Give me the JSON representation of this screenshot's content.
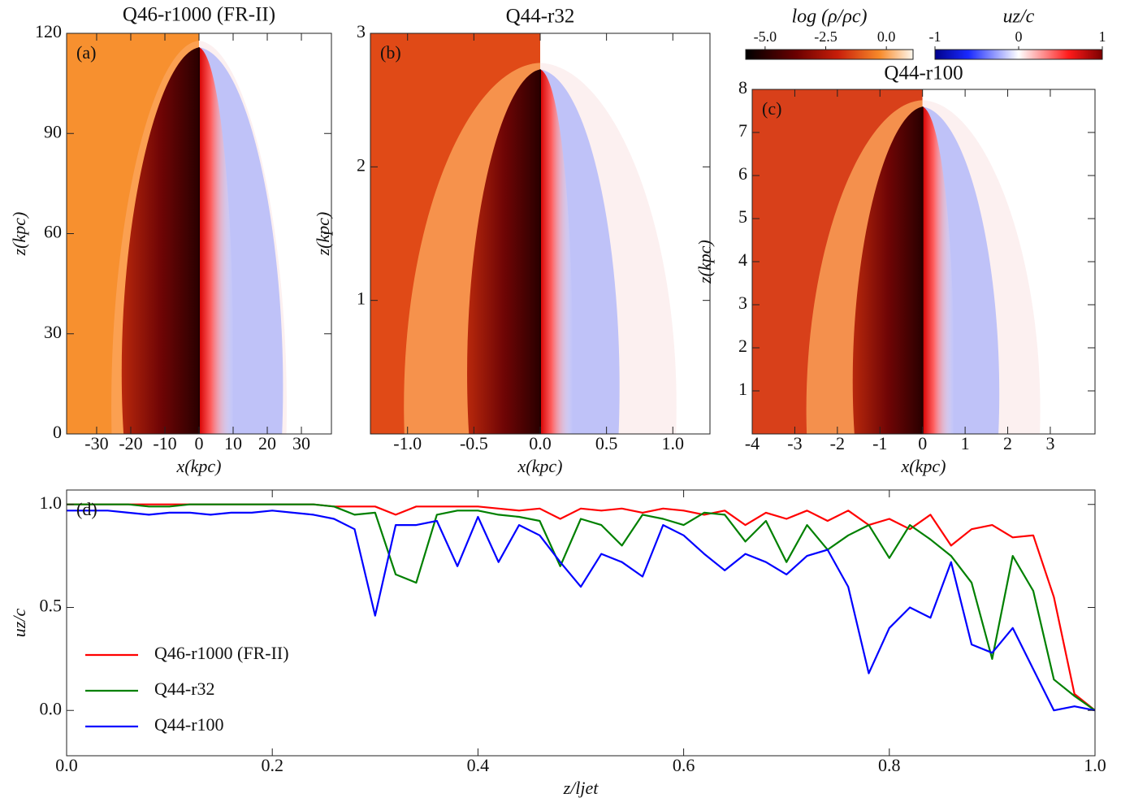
{
  "chart_data": [
    {
      "type": "image",
      "title": "Q46-r1000 (FR-II)",
      "panel_label": "(a)",
      "xlabel": "x(kpc)",
      "ylabel": "z(kpc)",
      "xlim": [
        -38.8,
        38.8
      ],
      "ylim": [
        0,
        120
      ],
      "xticks": [
        -30,
        -20,
        -10,
        0,
        10,
        20,
        30
      ],
      "yticks": [
        0,
        30,
        60,
        90,
        120
      ]
    },
    {
      "type": "image",
      "title": "Q44-r32",
      "panel_label": "(b)",
      "xlabel": "x(kpc)",
      "ylabel": "z(kpc)",
      "xlim": [
        -1.28,
        1.28
      ],
      "ylim": [
        0,
        3
      ],
      "xticks": [
        {
          "value": -1,
          "label": "-1.0"
        },
        {
          "value": -0.5,
          "label": "-0.5"
        },
        {
          "value": 0,
          "label": "0.0"
        },
        {
          "value": 0.5,
          "label": "0.5"
        },
        {
          "value": 1,
          "label": "1.0"
        }
      ],
      "yticks": [
        1,
        2,
        3
      ]
    },
    {
      "type": "image",
      "title": "Q44-r100",
      "panel_label": "(c)",
      "xlabel": "x(kpc)",
      "ylabel": "z(kpc)",
      "xlim": [
        -4,
        4.05
      ],
      "ylim": [
        0,
        8
      ],
      "xticks": [
        -4,
        -3,
        -2,
        -1,
        0,
        1,
        2,
        3
      ],
      "yticks": [
        1,
        2,
        3,
        4,
        5,
        6,
        7,
        8
      ]
    },
    {
      "type": "line",
      "panel_label": "(d)",
      "xlabel": "z/ljet",
      "ylabel": "uz/c",
      "xlim": [
        0,
        1
      ],
      "ylim": [
        -0.22,
        1.07
      ],
      "xticks": [
        {
          "value": 0,
          "label": "0.0"
        },
        {
          "value": 0.2,
          "label": "0.2"
        },
        {
          "value": 0.4,
          "label": "0.4"
        },
        {
          "value": 0.6,
          "label": "0.6"
        },
        {
          "value": 0.8,
          "label": "0.8"
        },
        {
          "value": 1,
          "label": "1.0"
        }
      ],
      "yticks": [
        {
          "value": 0,
          "label": "0.0"
        },
        {
          "value": 0.5,
          "label": "0.5"
        },
        {
          "value": 1,
          "label": "1.0"
        }
      ],
      "x": [
        0,
        0.02,
        0.04,
        0.06,
        0.08,
        0.1,
        0.12,
        0.14,
        0.16,
        0.18,
        0.2,
        0.22,
        0.24,
        0.26,
        0.28,
        0.3,
        0.32,
        0.34,
        0.36,
        0.38,
        0.4,
        0.42,
        0.44,
        0.46,
        0.48,
        0.5,
        0.52,
        0.54,
        0.56,
        0.58,
        0.6,
        0.62,
        0.64,
        0.66,
        0.68,
        0.7,
        0.72,
        0.74,
        0.76,
        0.78,
        0.8,
        0.82,
        0.84,
        0.86,
        0.88,
        0.9,
        0.92,
        0.94,
        0.96,
        0.98,
        1
      ],
      "series": [
        {
          "name": "Q46-r1000 (FR-II)",
          "color": "#ff0000",
          "values": [
            1,
            1,
            1,
            1,
            1,
            1,
            1,
            1,
            1,
            1,
            1,
            1,
            1,
            0.99,
            0.99,
            0.99,
            0.95,
            0.99,
            0.99,
            0.99,
            0.99,
            0.98,
            0.97,
            0.98,
            0.93,
            0.98,
            0.97,
            0.98,
            0.96,
            0.98,
            0.97,
            0.95,
            0.97,
            0.9,
            0.96,
            0.93,
            0.97,
            0.92,
            0.97,
            0.9,
            0.93,
            0.88,
            0.95,
            0.8,
            0.88,
            0.9,
            0.84,
            0.85,
            0.55,
            0.08,
            0
          ]
        },
        {
          "name": "Q44-r32",
          "color": "#008000",
          "values": [
            1,
            1,
            1,
            1,
            0.99,
            0.99,
            1,
            1,
            1,
            1,
            1,
            1,
            1,
            0.99,
            0.95,
            0.96,
            0.66,
            0.62,
            0.95,
            0.97,
            0.97,
            0.95,
            0.94,
            0.92,
            0.7,
            0.93,
            0.9,
            0.8,
            0.95,
            0.93,
            0.9,
            0.96,
            0.95,
            0.82,
            0.92,
            0.72,
            0.9,
            0.78,
            0.85,
            0.9,
            0.74,
            0.9,
            0.83,
            0.75,
            0.62,
            0.25,
            0.75,
            0.58,
            0.15,
            0.07,
            0
          ]
        },
        {
          "name": "Q44-r100",
          "color": "#0000ff",
          "values": [
            0.97,
            0.97,
            0.97,
            0.96,
            0.95,
            0.96,
            0.96,
            0.95,
            0.96,
            0.96,
            0.97,
            0.96,
            0.95,
            0.93,
            0.88,
            0.46,
            0.9,
            0.9,
            0.92,
            0.7,
            0.94,
            0.72,
            0.9,
            0.85,
            0.72,
            0.6,
            0.76,
            0.72,
            0.65,
            0.9,
            0.85,
            0.76,
            0.68,
            0.76,
            0.72,
            0.66,
            0.75,
            0.78,
            0.6,
            0.18,
            0.4,
            0.5,
            0.45,
            0.72,
            0.32,
            0.28,
            0.4,
            0.2,
            0,
            0.02,
            0
          ]
        }
      ]
    },
    {
      "type": "colorbar",
      "label": "log (ρ/ρc)",
      "clim": [
        -5.8,
        1.1
      ],
      "ticks": [
        {
          "value": -5,
          "label": "-5.0"
        },
        {
          "value": -2.5,
          "label": "-2.5"
        },
        {
          "value": 0,
          "label": "0.0"
        }
      ]
    },
    {
      "type": "colorbar",
      "label": "uz/c",
      "clim": [
        -1,
        1
      ],
      "ticks": [
        -1,
        0,
        1
      ]
    }
  ]
}
